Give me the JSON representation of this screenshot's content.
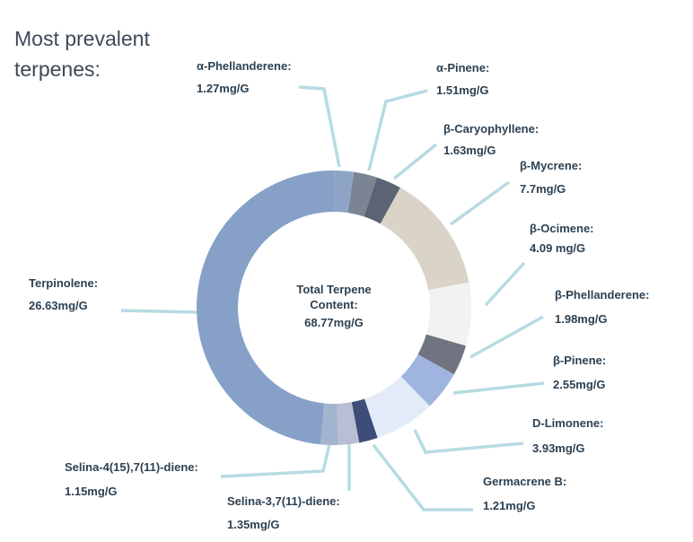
{
  "title": "Most prevalent terpenes:",
  "center": {
    "line1": "Total Terpene",
    "line2": "Content:",
    "value": "68.77mg/G"
  },
  "colors": {
    "leader_line": "#b7dbe2",
    "text": "#2d4152"
  },
  "chart_data": {
    "type": "pie",
    "donut": true,
    "title": "Most prevalent terpenes:",
    "total_label": "68.77mg/G",
    "slices": [
      {
        "name": "α-Phellanderene:",
        "display_value": "1.27mg/G",
        "value": 1.27,
        "color": "#8ea4c6"
      },
      {
        "name": "α-Pinene:",
        "display_value": "1.51mg/G",
        "value": 1.51,
        "color": "#7a8493"
      },
      {
        "name": "β-Caryophyllene:",
        "display_value": "1.63mg/G",
        "value": 1.63,
        "color": "#5a6474"
      },
      {
        "name": "β-Mycrene:",
        "display_value": "7.7mg/G",
        "value": 7.7,
        "color": "#dad3c8"
      },
      {
        "name": "β-Ocimene:",
        "display_value": "4.09 mg/G",
        "value": 4.09,
        "color": "#f2f2f2"
      },
      {
        "name": "β-Phellanderene:",
        "display_value": "1.98mg/G",
        "value": 1.98,
        "color": "#6f7480"
      },
      {
        "name": "β-Pinene:",
        "display_value": "2.55mg/G",
        "value": 2.55,
        "color": "#9fb5e0"
      },
      {
        "name": "D-Limonene:",
        "display_value": "3.93mg/G",
        "value": 3.93,
        "color": "#e3ebf8"
      },
      {
        "name": "Germacrene B:",
        "display_value": "1.21mg/G",
        "value": 1.21,
        "color": "#3e4c78"
      },
      {
        "name": "Selina-3,7(11)-diene:",
        "display_value": "1.35mg/G",
        "value": 1.35,
        "color": "#b8bfd3"
      },
      {
        "name": "Selina-4(15),7(11)-diene:",
        "display_value": "1.15mg/G",
        "value": 1.15,
        "color": "#a3b4cf"
      },
      {
        "name": "Terpinolene:",
        "display_value": "26.63mg/G",
        "value": 26.63,
        "color": "#86a0c8"
      }
    ]
  }
}
